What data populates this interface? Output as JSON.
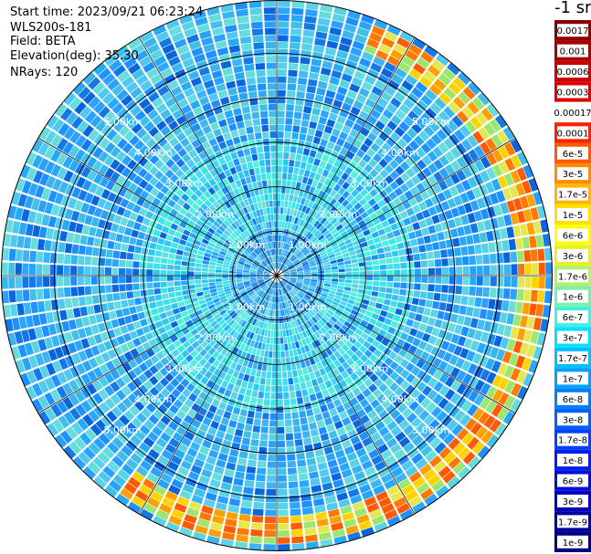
{
  "header": {
    "start_time": "Start time: 2023/09/21 06:23:24",
    "device": "WLS200s-181",
    "field": "Field: BETA",
    "elevation": "Elevation(deg): 35.30",
    "nrays": "NRays: 120"
  },
  "colorbar": {
    "title": "-1 sr",
    "labels": [
      "0.0017",
      "0.001",
      "0.0006",
      "0.0003",
      "0.00017",
      "0.0001",
      "6e-5",
      "3e-5",
      "1.7e-5",
      "1e-5",
      "6e-6",
      "3e-6",
      "1.7e-6",
      "1e-6",
      "6e-7",
      "3e-7",
      "1.7e-7",
      "1e-7",
      "6e-8",
      "3e-8",
      "1.7e-8",
      "1e-8",
      "6e-9",
      "3e-9",
      "1.7e-9",
      "1e-9"
    ],
    "colors": [
      "#8b0000",
      "#a80000",
      "#c80000",
      "#e00000",
      "#ffffff",
      "#ff2200",
      "#ff5a00",
      "#ff8c00",
      "#ffb800",
      "#ffe000",
      "#ffff00",
      "#e8f02a",
      "#b4f070",
      "#7cf0a8",
      "#40f0e0",
      "#00e0ff",
      "#00c0ff",
      "#00a0ff",
      "#0080ff",
      "#0060ff",
      "#0040ff",
      "#0020f0",
      "#0010d8",
      "#0000c0",
      "#0000a0",
      "#00007f"
    ]
  },
  "chart_data": {
    "type": "heatmap",
    "projection": "polar",
    "range_rings_km": [
      1,
      2,
      3,
      4,
      5
    ],
    "range_ring_labels": [
      "1.00km",
      "2.00km",
      "3.00km",
      "4.00km",
      "5.00km"
    ],
    "max_range_km": 6.2,
    "n_rays": 120,
    "radial_lines_deg": [
      0,
      30,
      60,
      90,
      120,
      150,
      180,
      210,
      240,
      270,
      300,
      330
    ],
    "field": "BETA",
    "dominant_band": "1e-8 to 1e-7",
    "high_return_arc": {
      "azimuth_start_deg": 20,
      "azimuth_end_deg": 215,
      "range_km": [
        5.3,
        6.0
      ],
      "level": "1e-6 to 3e-5"
    }
  }
}
